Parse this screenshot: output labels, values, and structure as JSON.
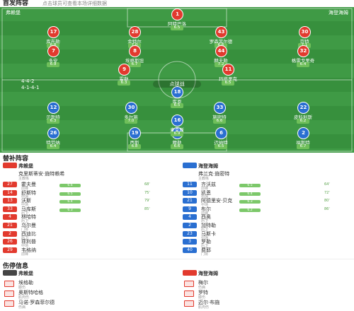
{
  "header": {
    "title": "首发阵容",
    "subtitle": "点击球员可查看本场详细数据"
  },
  "pitch": {
    "home_team": "弗赖堡",
    "away_team": "海登海姆",
    "center_label": "点球战",
    "home_formation": "4-4-2",
    "away_formation": "4-1-4-1",
    "home_players": [
      {
        "number": 1,
        "name": "阿特巴洛",
        "rating": "6.5"
      },
      {
        "number": 17,
        "name": "库布勒",
        "rating": "6.8"
      },
      {
        "number": 28,
        "name": "金特尔",
        "rating": "7.0"
      },
      {
        "number": 43,
        "name": "罗森菲尔德",
        "rating": "6.6"
      },
      {
        "number": 30,
        "name": "京特",
        "rating": "7.1"
      },
      {
        "number": 7,
        "name": "多安",
        "rating": "6.9"
      },
      {
        "number": 8,
        "name": "埃格斯坦",
        "rating": "6.7"
      },
      {
        "number": 44,
        "name": "赫夫勒",
        "rating": "7.2"
      },
      {
        "number": 32,
        "name": "格雷戈里奇",
        "rating": "6.4"
      },
      {
        "number": 9,
        "name": "霍勒",
        "rating": "6.3"
      },
      {
        "number": 11,
        "name": "玛塔里克",
        "rating": "6.5"
      }
    ],
    "away_players": [
      {
        "number": 1,
        "name": "穆勒",
        "rating": "6.6"
      },
      {
        "number": 26,
        "name": "特劳纳",
        "rating": "6.4"
      },
      {
        "number": 19,
        "name": "西斯",
        "rating": "6.8"
      },
      {
        "number": 6,
        "name": "迈纳特",
        "rating": "6.5"
      },
      {
        "number": 2,
        "name": "福斯特",
        "rating": "6.7"
      },
      {
        "number": 16,
        "name": "麦克斯",
        "rating": "6.9"
      },
      {
        "number": 12,
        "name": "贝斯特",
        "rating": "6.3"
      },
      {
        "number": 30,
        "name": "多尔施",
        "rating": "7.0"
      },
      {
        "number": 33,
        "name": "施密特",
        "rating": "6.6"
      },
      {
        "number": 22,
        "name": "皮科利斯",
        "rating": "6.2"
      },
      {
        "number": 18,
        "name": "库恩",
        "rating": "6.5"
      }
    ]
  },
  "subs": {
    "title": "替补阵容",
    "home": {
      "team": "弗赖堡",
      "coach": "克里斯蒂安·施特赖希",
      "coach_role": "主教练",
      "players": [
        {
          "number": 27,
          "name": "霍夫曼",
          "position": "前锋",
          "rating": "6.6",
          "time": "68'"
        },
        {
          "number": 14,
          "name": "舒斯特",
          "position": "中场",
          "rating": "6.5",
          "time": "75'"
        },
        {
          "number": 13,
          "name": "沃斯",
          "position": "中场",
          "rating": "6.4",
          "time": "79'"
        },
        {
          "number": 33,
          "name": "马库斯",
          "position": "后卫",
          "rating": "6.3",
          "time": "85'"
        },
        {
          "number": 4,
          "name": "林哈特",
          "position": "后卫"
        },
        {
          "number": 21,
          "name": "乌尔曼",
          "position": "门将"
        },
        {
          "number": 2,
          "name": "西迪比",
          "position": "后卫"
        },
        {
          "number": 26,
          "name": "菲利普",
          "position": "中场"
        },
        {
          "number": 29,
          "name": "韦格纳",
          "position": "前锋"
        }
      ]
    },
    "away": {
      "team": "海登海姆",
      "coach": "弗兰克·施密特",
      "coach_role": "主教练",
      "players": [
        {
          "number": 11,
          "name": "齐沃兹",
          "position": "前锋",
          "rating": "6.5",
          "time": "64'"
        },
        {
          "number": 10,
          "name": "凯恩",
          "position": "中场",
          "rating": "6.4",
          "time": "72'"
        },
        {
          "number": 21,
          "name": "阿德里安·贝克",
          "position": "中场",
          "rating": "6.3",
          "time": "80'"
        },
        {
          "number": 9,
          "name": "布尔",
          "position": "前锋",
          "rating": "6.2",
          "time": "86'"
        },
        {
          "number": 4,
          "name": "西奥",
          "position": "后卫"
        },
        {
          "number": 2,
          "name": "加特勒",
          "position": "后卫"
        },
        {
          "number": 23,
          "name": "马斯卡",
          "position": "中场"
        },
        {
          "number": 3,
          "name": "罗勒",
          "position": "后卫"
        },
        {
          "number": 40,
          "name": "费耶",
          "position": "门将"
        }
      ]
    }
  },
  "injuries": {
    "title": "伤停信息",
    "home": {
      "team": "弗赖堡",
      "players": [
        {
          "name": "埃格勒",
          "reason": "膝伤"
        },
        {
          "name": "奥斯特哈格",
          "reason": "肌肉伤"
        },
        {
          "name": "马诺·罗森菲尔德",
          "reason": "伤病"
        }
      ]
    },
    "away": {
      "team": "海登海姆",
      "players": [
        {
          "name": "梅尔",
          "reason": "伤病"
        },
        {
          "name": "罗特",
          "reason": "膝伤"
        },
        {
          "name": "迈尔·布施",
          "reason": "肌肉伤"
        }
      ]
    }
  }
}
